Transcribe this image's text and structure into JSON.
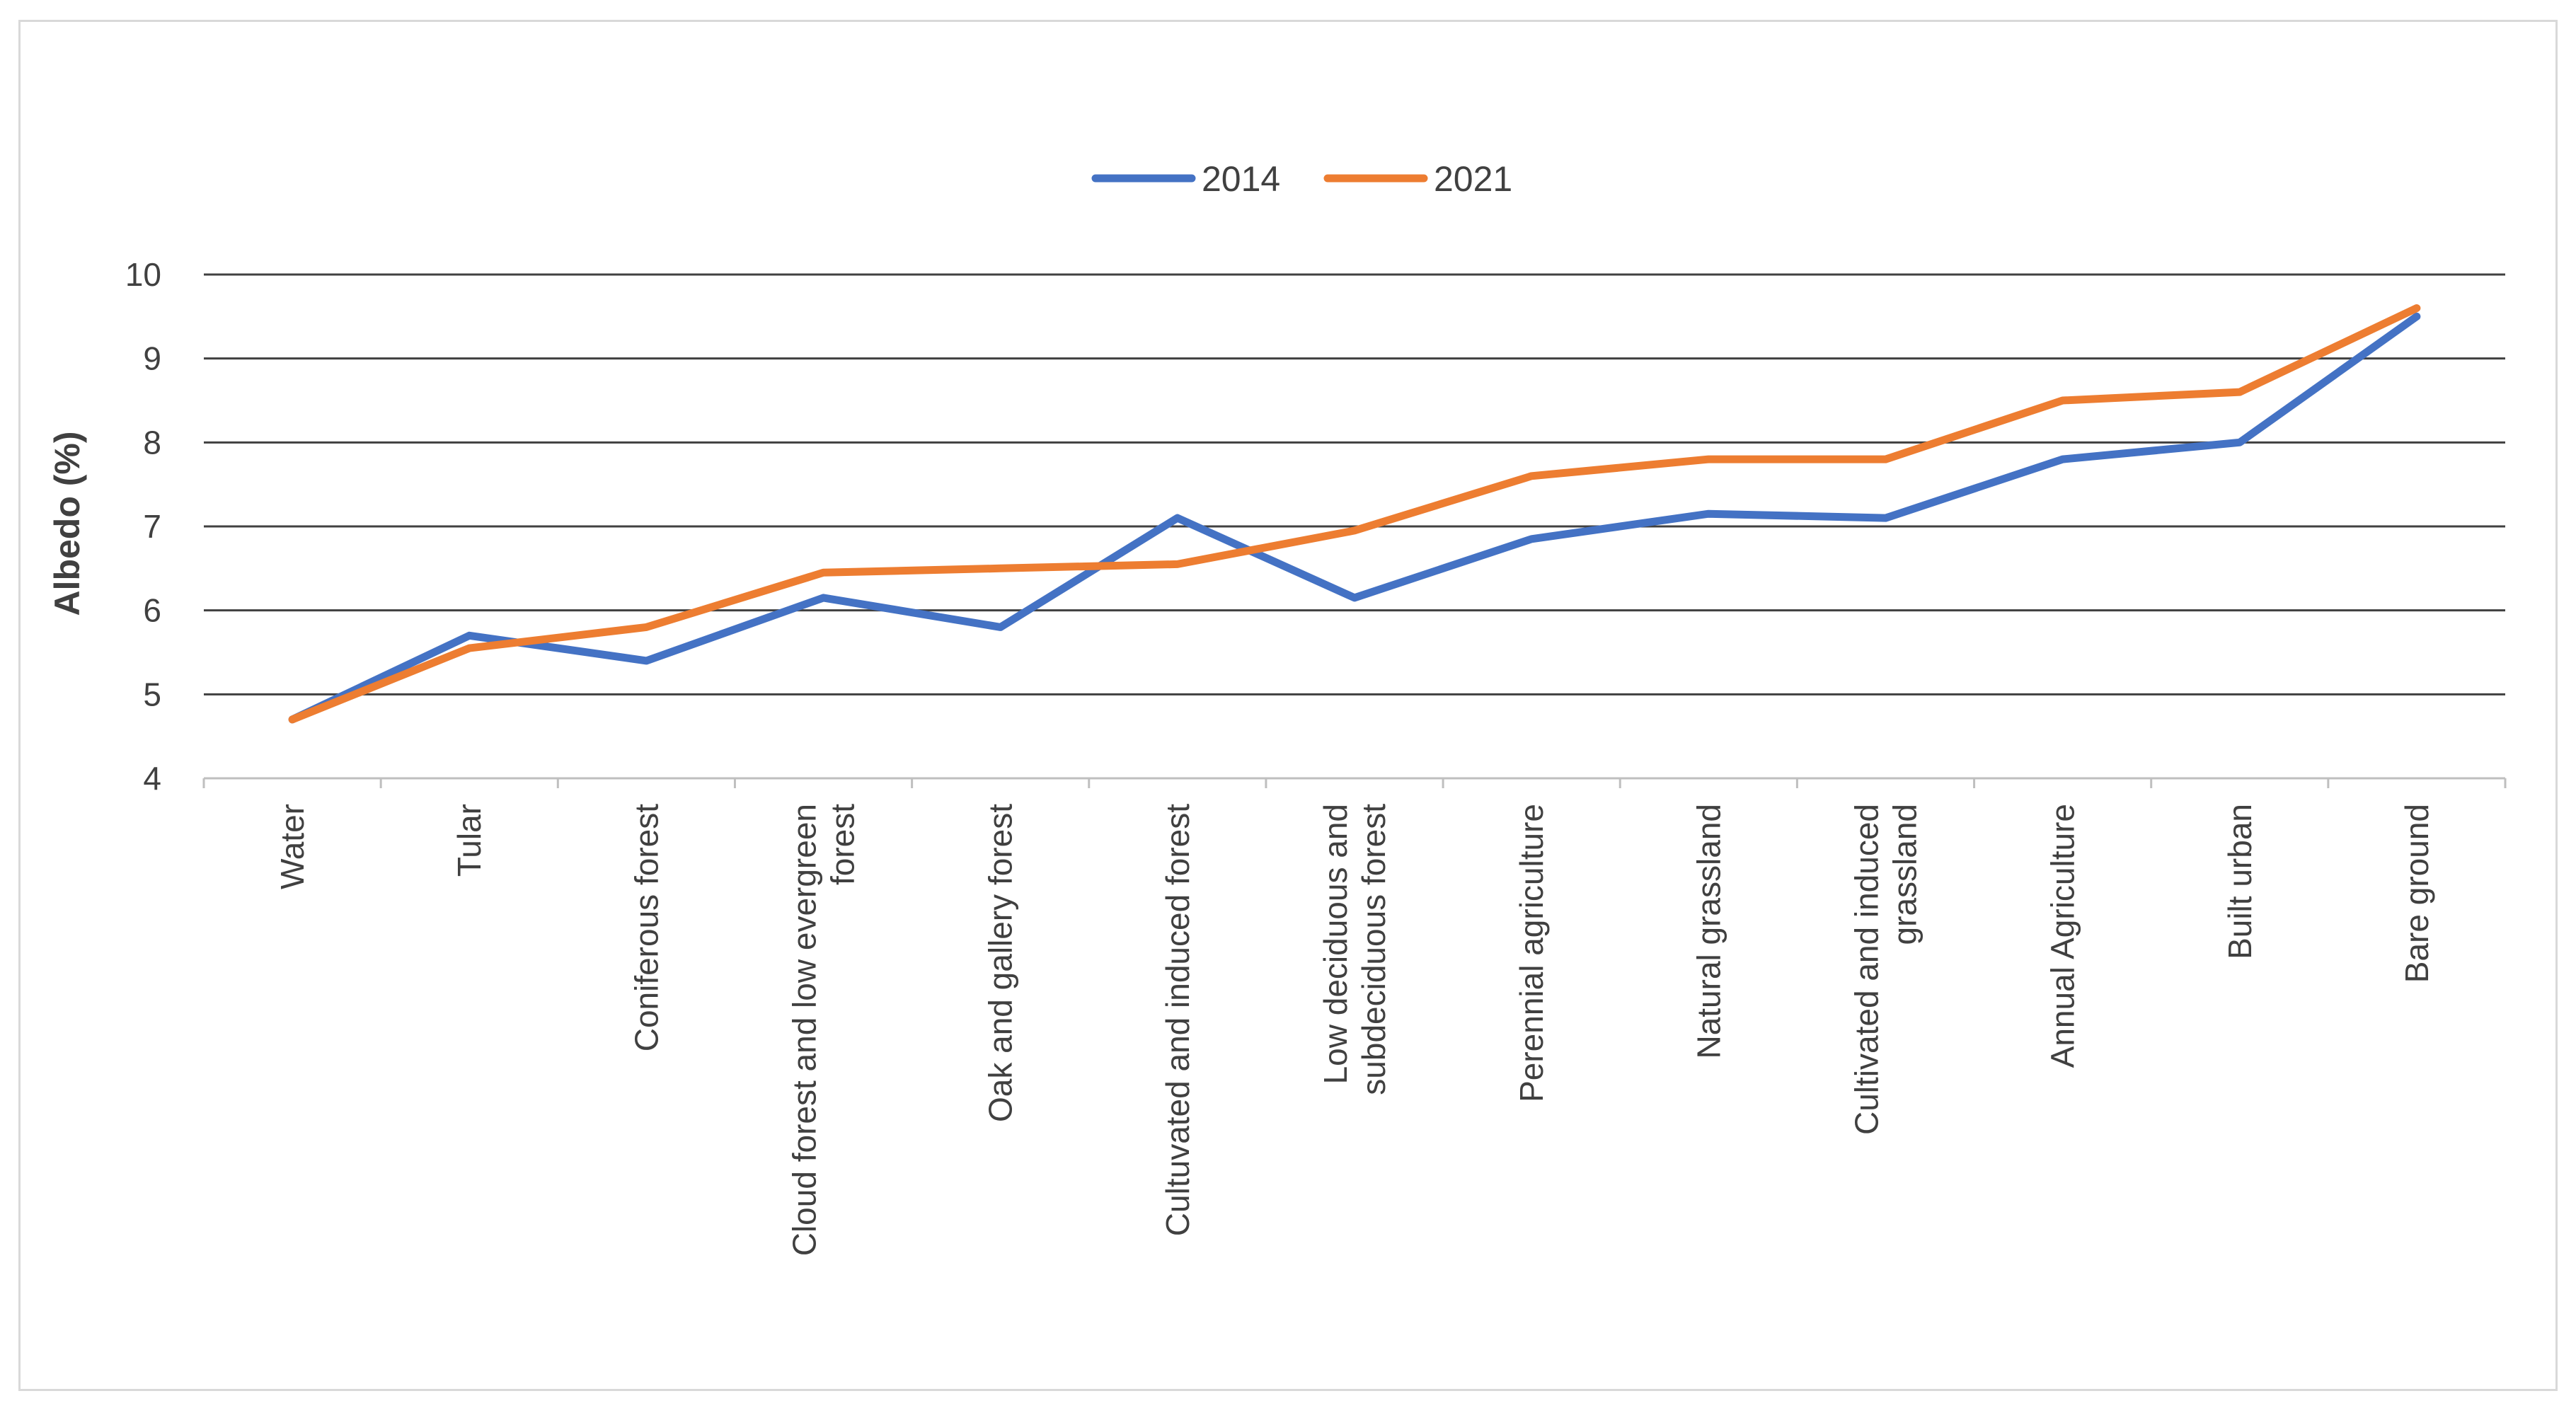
{
  "chart_data": {
    "type": "line",
    "title": "",
    "xlabel": "",
    "ylabel": "Albedo (%)",
    "ylim": [
      4,
      10
    ],
    "yticks": [
      4,
      5,
      6,
      7,
      8,
      9,
      10
    ],
    "grid": true,
    "legend_position": "top-center",
    "categories": [
      [
        "Water"
      ],
      [
        "Tular"
      ],
      [
        "Coniferous forest"
      ],
      [
        "Cloud forest and low evergreen",
        "forest"
      ],
      [
        "Oak and gallery forest"
      ],
      [
        "Cultuvated and induced forest"
      ],
      [
        "Low deciduous and",
        "subdeciduous forest"
      ],
      [
        "Perennial agriculture"
      ],
      [
        "Natural grassland"
      ],
      [
        "Cultivated and induced",
        "grassland"
      ],
      [
        "Annual Agriculture"
      ],
      [
        "Built urban"
      ],
      [
        "Bare ground"
      ]
    ],
    "series": [
      {
        "name": "2014",
        "color": "#4472C4",
        "values": [
          4.7,
          5.7,
          5.4,
          6.15,
          5.8,
          7.1,
          6.15,
          6.85,
          7.15,
          7.1,
          7.8,
          8.0,
          9.5
        ]
      },
      {
        "name": "2021",
        "color": "#ED7D31",
        "values": [
          4.7,
          5.55,
          5.8,
          6.45,
          6.5,
          6.55,
          6.95,
          7.6,
          7.8,
          7.8,
          8.5,
          8.6,
          9.6
        ]
      }
    ]
  }
}
